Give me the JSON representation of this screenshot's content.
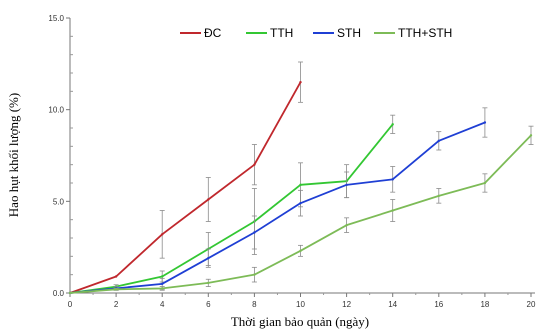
{
  "chart_data": {
    "type": "line",
    "xlabel": "Thời gian bảo quản (ngày)",
    "ylabel": "Hao hụt khối lượng (%)",
    "xlim": [
      0,
      20
    ],
    "ylim": [
      0,
      15
    ],
    "x_ticks": [
      "0",
      "2",
      "4",
      "6",
      "8",
      "10",
      "12",
      "14",
      "16",
      "18",
      "20"
    ],
    "y_ticks": [
      "0.0",
      "5.0",
      "10.0",
      "15.0"
    ],
    "grid": false,
    "legend_position": "top",
    "series": [
      {
        "name": "ĐC",
        "color": "#c0282d",
        "x": [
          0,
          2,
          4,
          6,
          8,
          10
        ],
        "y": [
          0,
          0.9,
          3.2,
          5.1,
          7.0,
          11.5
        ],
        "err": [
          0,
          0,
          1.3,
          1.2,
          1.1,
          1.1
        ]
      },
      {
        "name": "TTH",
        "color": "#33c733",
        "x": [
          0,
          2,
          4,
          6,
          8,
          10,
          12,
          14
        ],
        "y": [
          0,
          0.35,
          0.9,
          2.4,
          3.9,
          5.9,
          6.1,
          9.2
        ],
        "err": [
          0,
          0.1,
          0.3,
          0.9,
          1.8,
          1.2,
          0.9,
          0.5
        ]
      },
      {
        "name": "STH",
        "color": "#1f3fd4",
        "x": [
          0,
          2,
          4,
          6,
          8,
          10,
          12,
          14,
          16,
          18
        ],
        "y": [
          0,
          0.25,
          0.5,
          1.9,
          3.3,
          4.9,
          5.9,
          6.2,
          8.3,
          9.3
        ],
        "err": [
          0,
          0.1,
          0.3,
          0.5,
          0.9,
          0.7,
          0.7,
          0.7,
          0.5,
          0.8
        ]
      },
      {
        "name": "TTH+STH",
        "color": "#7dbb57",
        "x": [
          0,
          2,
          4,
          6,
          8,
          10,
          12,
          14,
          16,
          18,
          20
        ],
        "y": [
          0,
          0.2,
          0.25,
          0.55,
          1.0,
          2.3,
          3.7,
          4.5,
          5.3,
          6.0,
          8.6
        ],
        "err": [
          0,
          0.05,
          0.1,
          0.2,
          0.4,
          0.3,
          0.4,
          0.6,
          0.4,
          0.5,
          0.5
        ]
      }
    ]
  }
}
